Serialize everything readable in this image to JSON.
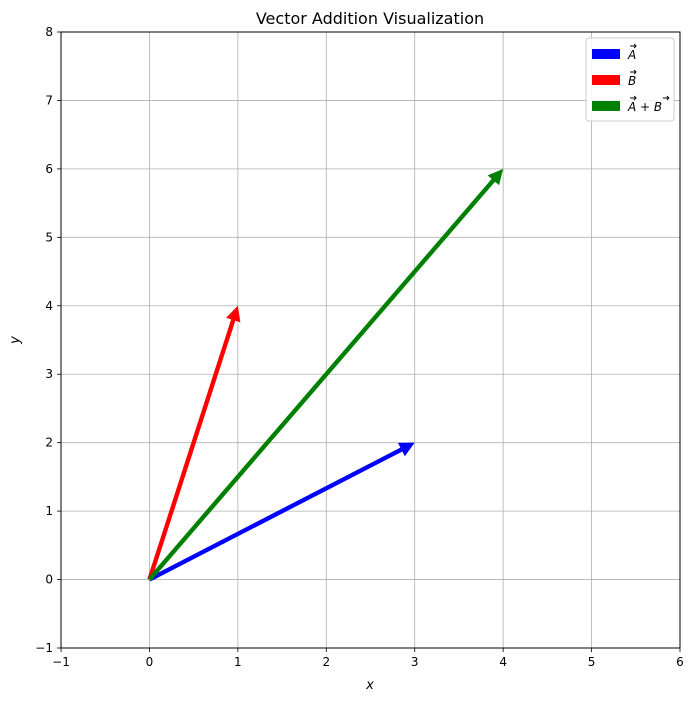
{
  "chart_data": {
    "type": "vector",
    "title": "Vector Addition Visualization",
    "xlabel": "x",
    "ylabel": "y",
    "xlim": [
      -1,
      6
    ],
    "ylim": [
      -1,
      8
    ],
    "xticks": [
      -1,
      0,
      1,
      2,
      3,
      4,
      5,
      6
    ],
    "yticks": [
      -1,
      0,
      1,
      2,
      3,
      4,
      5,
      6,
      7,
      8
    ],
    "grid": true,
    "legend_position": "top-right",
    "series": [
      {
        "name": "A",
        "label_parts": [
          {
            "t": "A",
            "arrow": true
          }
        ],
        "start": [
          0,
          0
        ],
        "end": [
          3,
          2
        ],
        "color": "#0000ff"
      },
      {
        "name": "B",
        "label_parts": [
          {
            "t": "B",
            "arrow": true
          }
        ],
        "start": [
          0,
          0
        ],
        "end": [
          1,
          4
        ],
        "color": "#ff0000"
      },
      {
        "name": "A + B",
        "label_parts": [
          {
            "t": "A",
            "arrow": true
          },
          {
            "t": " + ",
            "arrow": false
          },
          {
            "t": "B",
            "arrow": true
          }
        ],
        "start": [
          0,
          0
        ],
        "end": [
          4,
          6
        ],
        "color": "#008000"
      }
    ]
  }
}
